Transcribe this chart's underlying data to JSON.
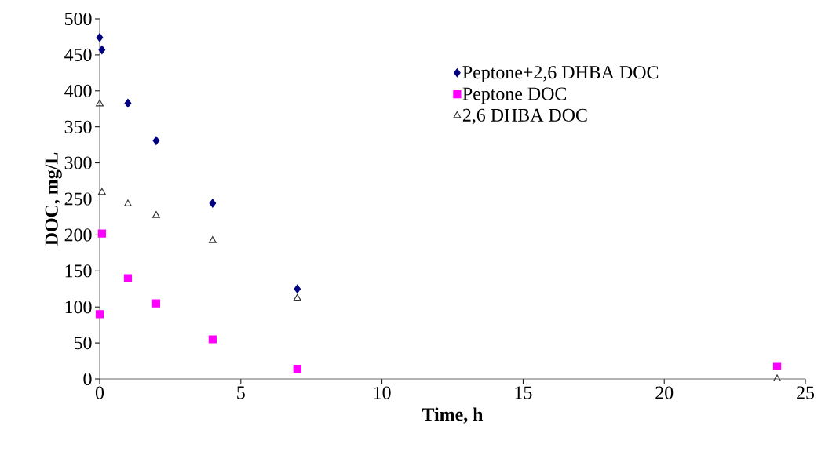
{
  "chart_data": {
    "type": "scatter",
    "xlabel": "Time, h",
    "ylabel": "DOC, mg/L",
    "xlim": [
      0,
      25
    ],
    "xticks": [
      0,
      5,
      10,
      15,
      20,
      25
    ],
    "ylim": [
      0,
      500
    ],
    "yticks": [
      0,
      50,
      100,
      150,
      200,
      250,
      300,
      350,
      400,
      450,
      500
    ],
    "x": [
      0,
      0.08,
      1,
      2,
      4,
      7,
      24
    ],
    "series": [
      {
        "name": "Peptone+2,6 DHBA DOC",
        "color": "#000080",
        "marker": "diamond",
        "values": [
          474,
          457,
          383,
          331,
          244,
          125,
          null
        ]
      },
      {
        "name": "Peptone DOC",
        "color": "#ff00ff",
        "marker": "square",
        "values": [
          90,
          202,
          140,
          105,
          55,
          14,
          18
        ]
      },
      {
        "name": "2,6 DHBA DOC",
        "color": "#333333",
        "marker": "triangle",
        "values": [
          382,
          259,
          243,
          227,
          192,
          112,
          0
        ]
      }
    ],
    "grid": false,
    "legend": "top right"
  }
}
